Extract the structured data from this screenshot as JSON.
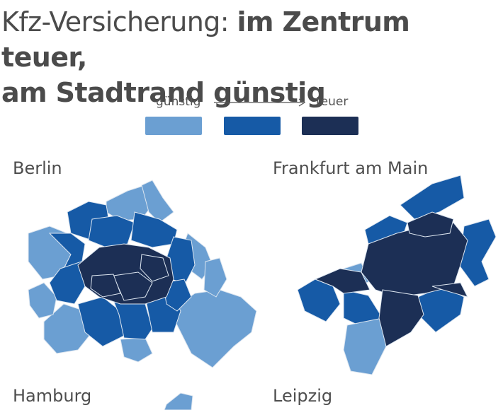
{
  "headline": {
    "light": "Kfz-Versicherung:",
    "bold_line1": "im Zentrum teuer,",
    "bold_line2": "am Stadtrand günstig"
  },
  "legend": {
    "low_label": "günstig",
    "high_label": "teuer",
    "colors": [
      "#6b9fd2",
      "#165aa6",
      "#1c2f55"
    ]
  },
  "cities": {
    "berlin": "Berlin",
    "frankfurt": "Frankfurt am Main",
    "hamburg": "Hamburg",
    "leipzig": "Leipzig"
  },
  "map_colors": {
    "cheap": "#6b9fd2",
    "medium": "#165aa6",
    "expensive": "#1c2f55",
    "borders": "#dde6f0"
  }
}
